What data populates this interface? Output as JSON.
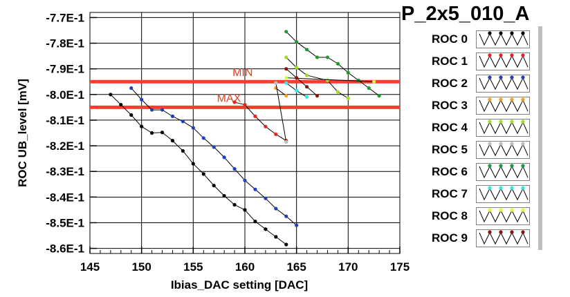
{
  "title": "P_2x5_010_A",
  "chart_data": {
    "type": "line",
    "xlabel": "Ibias_DAC setting [DAC]",
    "ylabel": "ROC UB_level [mV]",
    "xlim": [
      145,
      175
    ],
    "ylim": [
      -0.862,
      -0.768
    ],
    "x_ticks": [
      145,
      150,
      155,
      160,
      165,
      170,
      175
    ],
    "y_ticks": [
      {
        "v": -0.77,
        "label": "-7.7E-1"
      },
      {
        "v": -0.78,
        "label": "-7.8E-1"
      },
      {
        "v": -0.79,
        "label": "-7.9E-1"
      },
      {
        "v": -0.8,
        "label": "-8.0E-1"
      },
      {
        "v": -0.81,
        "label": "-8.1E-1"
      },
      {
        "v": -0.82,
        "label": "-8.2E-1"
      },
      {
        "v": -0.83,
        "label": "-8.3E-1"
      },
      {
        "v": -0.84,
        "label": "-8.4E-1"
      },
      {
        "v": -0.85,
        "label": "-8.5E-1"
      },
      {
        "v": -0.86,
        "label": "-8.6E-1"
      }
    ],
    "grid": true,
    "reference_lines": [
      {
        "label": "MIN",
        "y": -0.795,
        "color": "#ff3b2f",
        "label_x": 158.8
      },
      {
        "label": "MAX",
        "y": -0.805,
        "color": "#ff3b2f",
        "label_x": 157.3
      }
    ],
    "series": [
      {
        "name": "ROC 0",
        "color": "#000000",
        "points": [
          [
            147,
            -0.8
          ],
          [
            148,
            -0.804
          ],
          [
            149,
            -0.808
          ],
          [
            150,
            -0.8125
          ],
          [
            151,
            -0.815
          ],
          [
            152,
            -0.8148
          ],
          [
            153,
            -0.818
          ],
          [
            154,
            -0.822
          ],
          [
            155,
            -0.827
          ],
          [
            156,
            -0.831
          ],
          [
            157,
            -0.8355
          ],
          [
            158,
            -0.8395
          ],
          [
            159,
            -0.843
          ],
          [
            160,
            -0.845
          ],
          [
            161,
            -0.8495
          ],
          [
            162,
            -0.8525
          ],
          [
            163,
            -0.8555
          ],
          [
            164,
            -0.8585
          ]
        ]
      },
      {
        "name": "ROC 1",
        "color": "#e8231f",
        "points": [
          [
            159,
            -0.803
          ],
          [
            160,
            -0.804
          ],
          [
            161,
            -0.8085
          ],
          [
            162,
            -0.8125
          ],
          [
            163,
            -0.8155
          ],
          [
            164,
            -0.818
          ]
        ]
      },
      {
        "name": "ROC 2",
        "color": "#1f3fbf",
        "points": [
          [
            149,
            -0.7975
          ],
          [
            150,
            -0.802
          ],
          [
            151,
            -0.806
          ],
          [
            152,
            -0.806
          ],
          [
            153,
            -0.8085
          ],
          [
            154,
            -0.8105
          ],
          [
            155,
            -0.813
          ],
          [
            156,
            -0.817
          ],
          [
            157,
            -0.8205
          ],
          [
            158,
            -0.8245
          ],
          [
            159,
            -0.829
          ],
          [
            160,
            -0.8335
          ],
          [
            161,
            -0.837
          ],
          [
            162,
            -0.8405
          ],
          [
            163,
            -0.8445
          ],
          [
            164,
            -0.8475
          ],
          [
            165,
            -0.851
          ]
        ]
      },
      {
        "name": "ROC 3",
        "color": "#f0a020",
        "points": [
          [
            163,
            -0.7975
          ],
          [
            164,
            -0.8005
          ]
        ]
      },
      {
        "name": "ROC 4",
        "color": "#a0e020",
        "points": [
          [
            164,
            -0.7855
          ],
          [
            165,
            -0.7895
          ],
          [
            166,
            -0.7925
          ],
          [
            168,
            -0.7945
          ],
          [
            169,
            -0.799
          ],
          [
            170,
            -0.8015
          ]
        ]
      },
      {
        "name": "ROC 5",
        "color": "#bdbdbd",
        "points": [
          [
            163,
            -0.7955
          ],
          [
            164,
            -0.8185
          ]
        ]
      },
      {
        "name": "ROC 6",
        "color": "#1e9a2c",
        "points": [
          [
            164,
            -0.7755
          ],
          [
            165,
            -0.7795
          ],
          [
            166,
            -0.7825
          ],
          [
            167,
            -0.7855
          ],
          [
            168,
            -0.7855
          ],
          [
            169,
            -0.788
          ],
          [
            170,
            -0.7915
          ],
          [
            171,
            -0.7945
          ],
          [
            172,
            -0.7975
          ],
          [
            173,
            -0.8005
          ]
        ]
      },
      {
        "name": "ROC 7",
        "color": "#35e8f0",
        "points": [
          [
            164,
            -0.7955
          ],
          [
            165,
            -0.7985
          ],
          [
            166,
            -0.801
          ]
        ]
      },
      {
        "name": "ROC 8",
        "color": "#d8ff40",
        "points": [
          [
            164,
            -0.7935
          ],
          [
            172.5,
            -0.795
          ]
        ]
      },
      {
        "name": "ROC 9",
        "color": "#8b1010",
        "points": [
          [
            164,
            -0.79
          ],
          [
            165,
            -0.7935
          ],
          [
            166,
            -0.797
          ],
          [
            167,
            -0.8005
          ]
        ]
      }
    ]
  }
}
